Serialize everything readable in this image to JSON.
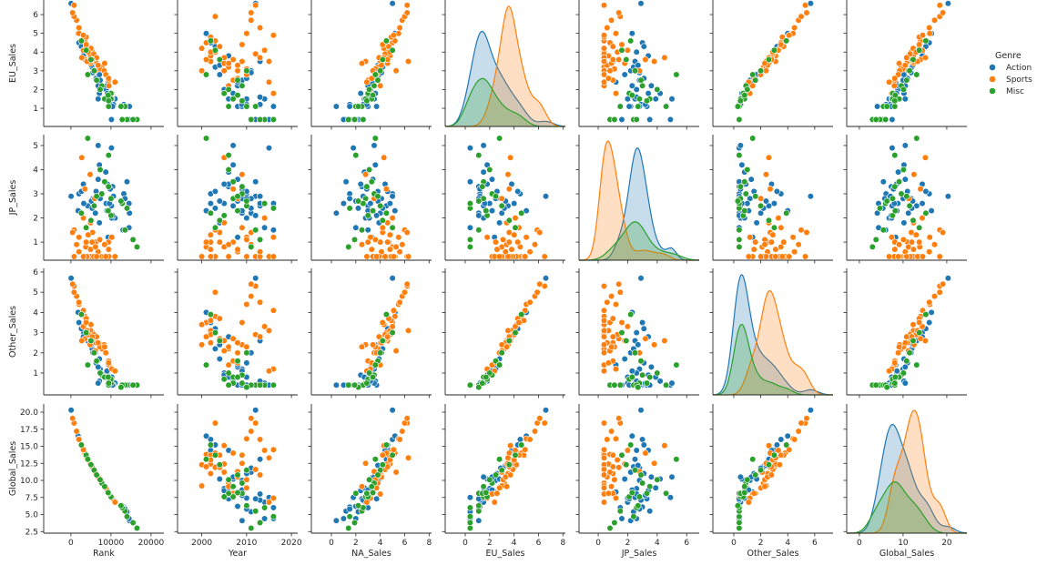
{
  "chart_data": {
    "type": "scatter",
    "title": "",
    "variables": [
      "Rank",
      "Year",
      "NA_Sales",
      "EU_Sales",
      "JP_Sales",
      "Other_Sales",
      "Global_Sales"
    ],
    "row_variables": [
      "EU_Sales",
      "JP_Sales",
      "Other_Sales",
      "Global_Sales"
    ],
    "column_variables": [
      "Rank",
      "Year",
      "NA_Sales",
      "EU_Sales",
      "JP_Sales",
      "Other_Sales",
      "Global_Sales"
    ],
    "x_ranges": [
      [
        -6800,
        23200
      ],
      [
        1994.6,
        2021.4
      ],
      [
        -1.64,
        8.2
      ],
      [
        -1.64,
        8.2
      ],
      [
        -1.3,
        6.85
      ],
      [
        -1.55,
        7.36
      ],
      [
        -2.9,
        24.6
      ]
    ],
    "y_ranges": [
      [
        0.03,
        6.78
      ],
      [
        0.25,
        5.45
      ],
      [
        -0.08,
        6.18
      ],
      [
        2.27,
        21.2
      ]
    ],
    "x_ticks": [
      [
        "0",
        "10000",
        "20000"
      ],
      [
        "2000",
        "2010",
        "2020"
      ],
      [
        "0",
        "2",
        "4",
        "6",
        "8"
      ],
      [
        "0",
        "2",
        "4",
        "6",
        "8"
      ],
      [
        "0",
        "2",
        "4",
        "6"
      ],
      [
        "0",
        "2",
        "4",
        "6"
      ],
      [
        "0",
        "10",
        "20"
      ]
    ],
    "y_ticks": [
      [
        "1",
        "2",
        "3",
        "4",
        "5",
        "6"
      ],
      [
        "1",
        "2",
        "3",
        "4",
        "5"
      ],
      [
        "1",
        "2",
        "3",
        "4",
        "5",
        "6"
      ],
      [
        "2.5",
        "5.0",
        "7.5",
        "10.0",
        "12.5",
        "15.0",
        "17.5",
        "20.0"
      ]
    ],
    "diagonal": "kde",
    "grid": false,
    "legend": {
      "title": "Genre",
      "placement": "right",
      "entries": [
        "Action",
        "Sports",
        "Misc"
      ]
    },
    "colors": [
      "#1f77b4",
      "#ff7f0e",
      "#2ca02c"
    ],
    "record_fields": [
      "Rank",
      "Year",
      "NA_Sales",
      "EU_Sales",
      "JP_Sales",
      "Other_Sales",
      "Global_Sales",
      "GenreIndex"
    ],
    "records": [
      [
        13000,
        2008,
        2.0,
        1.1,
        2.7,
        0.4,
        6.2,
        0
      ],
      [
        13200,
        2010,
        1.5,
        1.2,
        3.0,
        0.4,
        6.1,
        0
      ],
      [
        10100,
        2007,
        3.0,
        1.5,
        2.5,
        0.5,
        7.5,
        0
      ],
      [
        7300,
        2009,
        3.5,
        2.5,
        2.8,
        1.2,
        10.0,
        0
      ],
      [
        6100,
        2011,
        4.0,
        3.0,
        2.2,
        2.0,
        11.2,
        0
      ],
      [
        10400,
        2006,
        2.5,
        1.1,
        3.3,
        0.4,
        7.3,
        0
      ],
      [
        14000,
        2012,
        1.2,
        0.4,
        3.5,
        0.4,
        5.5,
        0
      ],
      [
        4200,
        2013,
        4.5,
        3.5,
        2.5,
        2.6,
        13.1,
        0
      ],
      [
        2000,
        2002,
        5.0,
        4.5,
        3.0,
        3.5,
        16.0,
        0
      ],
      [
        50,
        2012,
        5.0,
        6.6,
        2.9,
        5.7,
        20.3,
        0
      ],
      [
        8800,
        2005,
        3.2,
        2.0,
        2.6,
        1.0,
        8.8,
        0
      ],
      [
        11000,
        2014,
        2.8,
        1.5,
        2.0,
        0.5,
        6.8,
        0
      ],
      [
        6300,
        2010,
        3.8,
        2.6,
        3.1,
        1.5,
        11.0,
        0
      ],
      [
        13000,
        2016,
        3.0,
        1.1,
        1.5,
        0.4,
        6.0,
        0
      ],
      [
        5300,
        2003,
        4.2,
        3.2,
        2.4,
        2.2,
        12.0,
        0
      ],
      [
        14600,
        2009,
        0.4,
        1.1,
        2.2,
        0.4,
        4.1,
        0
      ],
      [
        6800,
        2008,
        3.4,
        2.2,
        3.6,
        1.3,
        10.5,
        0
      ],
      [
        14000,
        2011,
        2.2,
        0.4,
        2.4,
        0.4,
        5.4,
        0
      ],
      [
        3200,
        2002,
        4.8,
        4.0,
        2.6,
        3.0,
        14.4,
        0
      ],
      [
        7100,
        2007,
        3.6,
        1.8,
        4.2,
        0.6,
        10.2,
        0
      ],
      [
        10600,
        2013,
        2.6,
        1.2,
        2.9,
        0.4,
        7.1,
        0
      ],
      [
        7100,
        2004,
        3.9,
        2.8,
        1.8,
        1.7,
        10.2,
        0
      ],
      [
        10100,
        2015,
        1.8,
        0.4,
        4.9,
        0.4,
        7.5,
        0
      ],
      [
        10200,
        2010,
        3.1,
        1.5,
        2.0,
        0.8,
        7.4,
        0
      ],
      [
        3100,
        2006,
        4.4,
        3.8,
        3.4,
        2.8,
        14.4,
        0
      ],
      [
        9800,
        2009,
        2.9,
        1.2,
        3.2,
        0.5,
        7.8,
        0
      ],
      [
        14500,
        2016,
        1.0,
        0.4,
        2.6,
        0.4,
        4.4,
        0
      ],
      [
        9300,
        2008,
        3.3,
        2.4,
        1.2,
        1.4,
        8.3,
        0
      ],
      [
        1800,
        2001,
        5.2,
        5.0,
        2.3,
        4.0,
        16.5,
        0
      ],
      [
        10400,
        2012,
        3.7,
        1.1,
        2.1,
        0.4,
        7.3,
        0
      ],
      [
        9100,
        2005,
        2.4,
        1.8,
        3.4,
        0.9,
        8.5,
        0
      ],
      [
        5500,
        2011,
        4.1,
        2.9,
        2.8,
        2.0,
        11.8,
        0
      ],
      [
        6800,
        2007,
        3.5,
        1.5,
        5.0,
        0.5,
        10.5,
        0
      ],
      [
        14500,
        2014,
        2.0,
        0.4,
        1.6,
        0.4,
        4.4,
        0
      ],
      [
        5100,
        2004,
        3.8,
        3.3,
        2.7,
        2.4,
        12.2,
        0
      ],
      [
        13500,
        2010,
        1.5,
        1.1,
        2.8,
        0.4,
        5.8,
        0
      ],
      [
        2600,
        2003,
        4.6,
        4.3,
        3.1,
        3.2,
        15.2,
        0
      ],
      [
        9600,
        2013,
        3.2,
        1.6,
        2.6,
        0.6,
        8.0,
        0
      ],
      [
        8700,
        2006,
        2.7,
        1.5,
        3.9,
        0.8,
        8.9,
        0
      ],
      [
        9000,
        2009,
        3.0,
        2.2,
        2.3,
        1.1,
        8.6,
        0
      ],
      [
        6200,
        2002,
        4.0,
        3.5,
        1.0,
        2.5,
        11.0,
        1
      ],
      [
        5400,
        2003,
        4.5,
        4.0,
        0.4,
        3.0,
        11.9,
        1
      ],
      [
        3700,
        2001,
        5.0,
        4.5,
        0.8,
        3.5,
        13.8,
        1
      ],
      [
        5400,
        2004,
        4.2,
        3.6,
        1.4,
        2.7,
        11.9,
        1
      ],
      [
        800,
        2012,
        6.2,
        6.5,
        0.4,
        5.3,
        18.4,
        1
      ],
      [
        7700,
        2006,
        3.8,
        3.2,
        0.4,
        2.2,
        9.6,
        1
      ],
      [
        2000,
        2010,
        5.5,
        5.0,
        1.2,
        4.4,
        16.1,
        1
      ],
      [
        4900,
        2002,
        4.8,
        3.8,
        0.7,
        3.1,
        12.4,
        1
      ],
      [
        5900,
        2008,
        3.5,
        3.0,
        2.8,
        2.0,
        11.3,
        1
      ],
      [
        5000,
        2000,
        4.3,
        4.2,
        0.4,
        3.4,
        12.3,
        1
      ],
      [
        1400,
        2011,
        5.8,
        5.7,
        0.9,
        4.8,
        17.2,
        1
      ],
      [
        9400,
        2007,
        3.0,
        2.5,
        1.0,
        1.6,
        8.1,
        1
      ],
      [
        4900,
        2005,
        4.6,
        3.4,
        1.8,
        2.6,
        12.4,
        1
      ],
      [
        3500,
        2003,
        5.2,
        4.6,
        0.4,
        3.8,
        14.0,
        1
      ],
      [
        4800,
        2009,
        2.8,
        3.5,
        3.8,
        2.4,
        12.5,
        1
      ],
      [
        9500,
        2006,
        4.0,
        2.2,
        0.4,
        1.4,
        8.0,
        1
      ],
      [
        800,
        2003,
        6.0,
        5.9,
        1.5,
        5.0,
        18.4,
        1
      ],
      [
        5700,
        2012,
        4.4,
        3.9,
        0.4,
        2.9,
        11.6,
        1
      ],
      [
        7200,
        2010,
        3.6,
        3.1,
        1.1,
        2.3,
        10.1,
        1
      ],
      [
        3100,
        2014,
        5.0,
        4.1,
        2.0,
        3.3,
        14.4,
        1
      ],
      [
        3800,
        2002,
        4.9,
        4.8,
        0.4,
        3.6,
        13.7,
        1
      ],
      [
        10200,
        2016,
        3.2,
        1.8,
        1.2,
        1.2,
        7.4,
        1
      ],
      [
        400,
        2011,
        6.2,
        6.1,
        1.4,
        5.4,
        19.1,
        1
      ],
      [
        6800,
        2008,
        4.1,
        3.3,
        0.6,
        2.5,
        10.5,
        1
      ],
      [
        3800,
        2004,
        4.7,
        4.3,
        1.0,
        3.7,
        13.7,
        1
      ],
      [
        6400,
        2013,
        3.9,
        3.7,
        0.4,
        2.8,
        10.8,
        1
      ],
      [
        11000,
        2015,
        2.9,
        2.4,
        0.4,
        1.1,
        6.8,
        1
      ],
      [
        6100,
        2005,
        5.3,
        3.0,
        0.8,
        2.1,
        11.2,
        1
      ],
      [
        3500,
        2007,
        4.5,
        3.6,
        3.2,
        2.7,
        14.0,
        1
      ],
      [
        8300,
        2000,
        3.4,
        3.0,
        0.4,
        2.4,
        9.2,
        1
      ],
      [
        2000,
        2013,
        5.6,
        5.3,
        0.6,
        4.5,
        16.0,
        1
      ],
      [
        3800,
        2009,
        4.2,
        4.4,
        1.6,
        3.5,
        13.7,
        1
      ],
      [
        8700,
        2010,
        3.7,
        2.8,
        0.4,
        2.0,
        8.9,
        1
      ],
      [
        4300,
        2002,
        4.8,
        4.0,
        1.3,
        2.9,
        13.0,
        1
      ],
      [
        4000,
        2015,
        6.3,
        3.5,
        0.4,
        3.1,
        13.3,
        1
      ],
      [
        8400,
        2006,
        2.5,
        3.4,
        0.9,
        2.3,
        9.1,
        1
      ],
      [
        2700,
        2005,
        4.3,
        3.7,
        4.5,
        2.6,
        15.1,
        1
      ],
      [
        3100,
        2016,
        5.1,
        4.9,
        0.4,
        4.1,
        14.5,
        1
      ],
      [
        9400,
        2008,
        3.3,
        2.6,
        0.7,
        1.5,
        8.1,
        1
      ],
      [
        5300,
        2001,
        4.6,
        3.6,
        1.0,
        2.8,
        12.0,
        1
      ],
      [
        10000,
        2007,
        2.8,
        1.5,
        2.8,
        0.5,
        7.6,
        2
      ],
      [
        7700,
        2009,
        3.5,
        2.2,
        3.0,
        0.9,
        9.6,
        2
      ],
      [
        9400,
        2006,
        2.0,
        1.1,
        4.6,
        0.4,
        8.1,
        2
      ],
      [
        5800,
        2010,
        4.0,
        3.0,
        2.5,
        2.0,
        11.5,
        2
      ],
      [
        14000,
        2016,
        1.5,
        0.4,
        2.4,
        0.4,
        4.7,
        2
      ],
      [
        10000,
        2005,
        3.0,
        1.8,
        2.1,
        0.7,
        7.6,
        2
      ],
      [
        2600,
        2002,
        4.5,
        4.6,
        2.2,
        3.9,
        15.2,
        2
      ],
      [
        13500,
        2012,
        2.5,
        1.1,
        1.5,
        0.4,
        5.5,
        2
      ],
      [
        6400,
        2008,
        3.8,
        2.5,
        2.9,
        1.6,
        10.8,
        2
      ],
      [
        16500,
        2011,
        1.4,
        0.4,
        0.8,
        0.4,
        3.0,
        2
      ],
      [
        8400,
        2007,
        3.3,
        1.5,
        3.5,
        0.8,
        9.1,
        2
      ],
      [
        12800,
        2014,
        2.6,
        0.4,
        2.6,
        0.4,
        6.0,
        2
      ],
      [
        5000,
        2004,
        4.2,
        3.6,
        1.9,
        2.6,
        12.3,
        2
      ],
      [
        7300,
        2006,
        3.1,
        2.0,
        4.0,
        1.0,
        10.1,
        2
      ],
      [
        12500,
        2010,
        2.2,
        1.1,
        2.7,
        0.3,
        6.3,
        2
      ],
      [
        3800,
        2003,
        5.0,
        4.1,
        1.6,
        3.0,
        13.7,
        2
      ],
      [
        9400,
        2009,
        2.9,
        1.4,
        3.3,
        0.5,
        8.1,
        2
      ],
      [
        4200,
        2001,
        3.6,
        2.8,
        5.3,
        1.4,
        13.1,
        2
      ],
      [
        15500,
        2013,
        1.9,
        0.4,
        1.1,
        0.4,
        3.8,
        2
      ],
      [
        9300,
        2008,
        3.4,
        1.7,
        2.3,
        0.8,
        8.2,
        2
      ]
    ]
  }
}
